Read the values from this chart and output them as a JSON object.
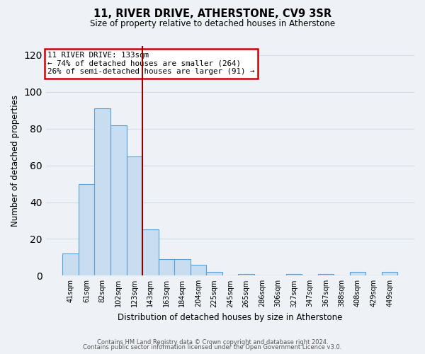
{
  "title": "11, RIVER DRIVE, ATHERSTONE, CV9 3SR",
  "subtitle": "Size of property relative to detached houses in Atherstone",
  "xlabel": "Distribution of detached houses by size in Atherstone",
  "ylabel": "Number of detached properties",
  "footnote1": "Contains HM Land Registry data © Crown copyright and database right 2024.",
  "footnote2": "Contains public sector information licensed under the Open Government Licence v3.0.",
  "bar_labels": [
    "41sqm",
    "61sqm",
    "82sqm",
    "102sqm",
    "123sqm",
    "143sqm",
    "163sqm",
    "184sqm",
    "204sqm",
    "225sqm",
    "245sqm",
    "265sqm",
    "286sqm",
    "306sqm",
    "327sqm",
    "347sqm",
    "367sqm",
    "388sqm",
    "408sqm",
    "429sqm",
    "449sqm"
  ],
  "bar_values": [
    12,
    50,
    91,
    82,
    65,
    25,
    9,
    9,
    6,
    2,
    0,
    1,
    0,
    0,
    1,
    0,
    1,
    0,
    2,
    0,
    2
  ],
  "bar_color": "#c8ddf0",
  "bar_edge_color": "#5a9fd4",
  "vline_x": 4.5,
  "vline_color": "#8b0000",
  "ylim": [
    0,
    125
  ],
  "yticks": [
    0,
    20,
    40,
    60,
    80,
    100,
    120
  ],
  "annotation_title": "11 RIVER DRIVE: 133sqm",
  "annotation_line1": "← 74% of detached houses are smaller (264)",
  "annotation_line2": "26% of semi-detached houses are larger (91) →",
  "annotation_box_color": "#ffffff",
  "annotation_box_edge": "#cc0000",
  "grid_color": "#d0dce8",
  "bg_color": "#eef2f7"
}
